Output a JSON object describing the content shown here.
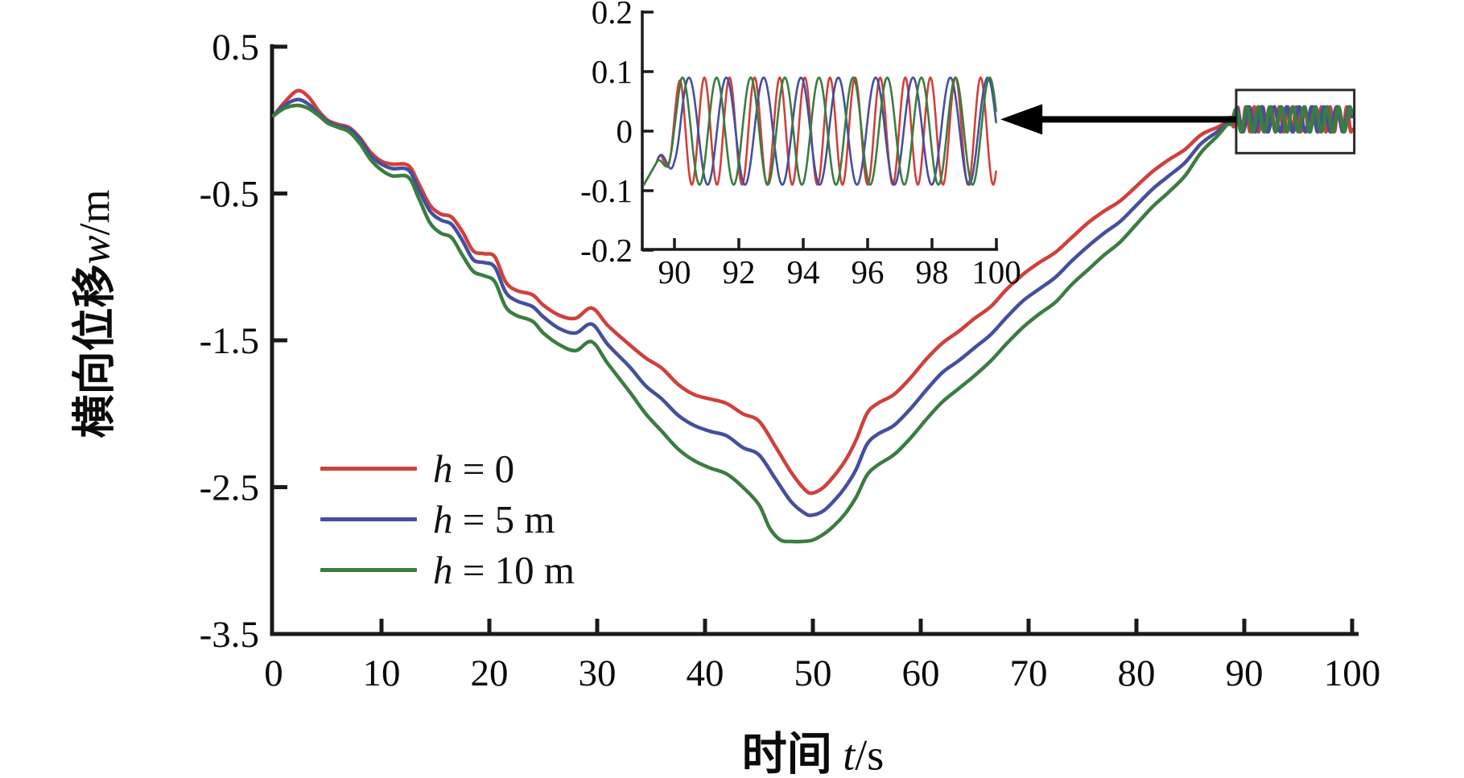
{
  "figure": {
    "background": "#ffffff",
    "axis_color": "#1a1a1a"
  },
  "chart_data": {
    "type": "line",
    "title": "",
    "xlabel": {
      "cn": "时间",
      "var": "t",
      "unit": "/s"
    },
    "ylabel": {
      "cn": "横向位移",
      "var": "w",
      "unit": "/m"
    },
    "xlim": [
      0,
      100
    ],
    "ylim": [
      -3.5,
      0.5
    ],
    "xticks": [
      "10",
      "20",
      "30",
      "40",
      "50",
      "60",
      "70",
      "80",
      "90",
      "100"
    ],
    "xtick_values": [
      10,
      20,
      30,
      40,
      50,
      60,
      70,
      80,
      90,
      100
    ],
    "yticks": [
      "0.5",
      "-0.5",
      "-1.5",
      "-2.5",
      "-3.5"
    ],
    "ytick_values": [
      0.5,
      -0.5,
      -1.5,
      -2.5,
      -3.5
    ],
    "grid": false,
    "legend": {
      "position": "lower-left-inside",
      "entries": [
        {
          "var": "h",
          "rest": " = 0",
          "color": "#d0403c"
        },
        {
          "var": "h",
          "rest": " = 5 m",
          "color": "#454f9e"
        },
        {
          "var": "h",
          "rest": " = 10 m",
          "color": "#3a7d40"
        }
      ]
    },
    "series": [
      {
        "name": "h = 0",
        "color": "#d0403c",
        "trend": [
          [
            0,
            0.03
          ],
          [
            1,
            0.12
          ],
          [
            2.2,
            0.2
          ],
          [
            3.2,
            0.16
          ],
          [
            4.2,
            0.06
          ],
          [
            5,
            0.0
          ],
          [
            6,
            -0.03
          ],
          [
            7,
            -0.05
          ],
          [
            8,
            -0.12
          ],
          [
            9,
            -0.22
          ],
          [
            10,
            -0.28
          ],
          [
            11,
            -0.3
          ],
          [
            12.5,
            -0.31
          ],
          [
            13.5,
            -0.44
          ],
          [
            14.5,
            -0.58
          ],
          [
            15.5,
            -0.64
          ],
          [
            16.5,
            -0.66
          ],
          [
            17.5,
            -0.76
          ],
          [
            18.5,
            -0.89
          ],
          [
            19.5,
            -0.91
          ],
          [
            20.5,
            -0.93
          ],
          [
            21.5,
            -1.1
          ],
          [
            22.5,
            -1.16
          ],
          [
            24,
            -1.19
          ],
          [
            25,
            -1.26
          ],
          [
            26.5,
            -1.33
          ],
          [
            28,
            -1.35
          ],
          [
            29.5,
            -1.28
          ],
          [
            31,
            -1.4
          ],
          [
            33,
            -1.53
          ],
          [
            34.5,
            -1.62
          ],
          [
            36,
            -1.69
          ],
          [
            37.5,
            -1.8
          ],
          [
            39,
            -1.87
          ],
          [
            40.5,
            -1.9
          ],
          [
            42,
            -1.93
          ],
          [
            43.5,
            -2.0
          ],
          [
            45,
            -2.05
          ],
          [
            46.5,
            -2.22
          ],
          [
            48,
            -2.4
          ],
          [
            49.3,
            -2.52
          ],
          [
            50,
            -2.54
          ],
          [
            51,
            -2.5
          ],
          [
            52,
            -2.42
          ],
          [
            53,
            -2.32
          ],
          [
            54,
            -2.18
          ],
          [
            55,
            -2.0
          ],
          [
            56,
            -1.93
          ],
          [
            57.5,
            -1.87
          ],
          [
            59,
            -1.76
          ],
          [
            60.5,
            -1.63
          ],
          [
            62,
            -1.52
          ],
          [
            63.5,
            -1.44
          ],
          [
            65,
            -1.35
          ],
          [
            66.5,
            -1.27
          ],
          [
            68,
            -1.15
          ],
          [
            69.5,
            -1.05
          ],
          [
            71,
            -0.97
          ],
          [
            72.5,
            -0.9
          ],
          [
            74,
            -0.8
          ],
          [
            75.5,
            -0.7
          ],
          [
            77,
            -0.62
          ],
          [
            78.5,
            -0.55
          ],
          [
            80,
            -0.45
          ],
          [
            81.5,
            -0.35
          ],
          [
            83,
            -0.27
          ],
          [
            84.5,
            -0.2
          ],
          [
            86,
            -0.1
          ],
          [
            87.5,
            -0.05
          ]
        ],
        "tail": {
          "start": 87.5,
          "settle": 0.005,
          "amp": 0.085,
          "period": 0.78,
          "phase": 0.36
        }
      },
      {
        "name": "h = 5 m",
        "color": "#454f9e",
        "trend": [
          [
            0,
            0.03
          ],
          [
            1,
            0.1
          ],
          [
            2.2,
            0.14
          ],
          [
            3.2,
            0.11
          ],
          [
            4.2,
            0.04
          ],
          [
            5,
            -0.01
          ],
          [
            6,
            -0.04
          ],
          [
            7,
            -0.06
          ],
          [
            8,
            -0.13
          ],
          [
            9,
            -0.24
          ],
          [
            10,
            -0.3
          ],
          [
            11,
            -0.33
          ],
          [
            12.5,
            -0.34
          ],
          [
            13.5,
            -0.48
          ],
          [
            14.5,
            -0.62
          ],
          [
            15.5,
            -0.68
          ],
          [
            16.5,
            -0.71
          ],
          [
            17.5,
            -0.82
          ],
          [
            18.5,
            -0.95
          ],
          [
            19.5,
            -0.97
          ],
          [
            20.5,
            -1.0
          ],
          [
            21.5,
            -1.17
          ],
          [
            22.5,
            -1.23
          ],
          [
            24,
            -1.27
          ],
          [
            25,
            -1.34
          ],
          [
            26.5,
            -1.42
          ],
          [
            28,
            -1.45
          ],
          [
            29.5,
            -1.39
          ],
          [
            31,
            -1.53
          ],
          [
            33,
            -1.68
          ],
          [
            34.5,
            -1.81
          ],
          [
            36,
            -1.9
          ],
          [
            37.5,
            -2.01
          ],
          [
            39,
            -2.08
          ],
          [
            40.5,
            -2.12
          ],
          [
            42,
            -2.15
          ],
          [
            43.5,
            -2.23
          ],
          [
            45,
            -2.28
          ],
          [
            46.5,
            -2.44
          ],
          [
            48,
            -2.6
          ],
          [
            49.3,
            -2.68
          ],
          [
            50,
            -2.69
          ],
          [
            51,
            -2.66
          ],
          [
            52,
            -2.59
          ],
          [
            53,
            -2.5
          ],
          [
            54,
            -2.38
          ],
          [
            55,
            -2.21
          ],
          [
            56,
            -2.14
          ],
          [
            57.5,
            -2.08
          ],
          [
            59,
            -1.97
          ],
          [
            60.5,
            -1.84
          ],
          [
            62,
            -1.72
          ],
          [
            63.5,
            -1.64
          ],
          [
            65,
            -1.55
          ],
          [
            66.5,
            -1.46
          ],
          [
            68,
            -1.34
          ],
          [
            69.5,
            -1.23
          ],
          [
            71,
            -1.15
          ],
          [
            72.5,
            -1.07
          ],
          [
            74,
            -0.96
          ],
          [
            75.5,
            -0.86
          ],
          [
            77,
            -0.77
          ],
          [
            78.5,
            -0.69
          ],
          [
            80,
            -0.58
          ],
          [
            81.5,
            -0.47
          ],
          [
            83,
            -0.38
          ],
          [
            84.5,
            -0.29
          ],
          [
            86,
            -0.16
          ],
          [
            87.5,
            -0.08
          ]
        ],
        "tail": {
          "start": 87.5,
          "settle": 0.005,
          "amp": 0.085,
          "period": 1.16,
          "phase": -0.87
        }
      },
      {
        "name": "h = 10 m",
        "color": "#3a7d40",
        "trend": [
          [
            0,
            0.03
          ],
          [
            1,
            0.08
          ],
          [
            2.2,
            0.1
          ],
          [
            3.2,
            0.08
          ],
          [
            4.2,
            0.03
          ],
          [
            5,
            -0.02
          ],
          [
            6,
            -0.05
          ],
          [
            7,
            -0.08
          ],
          [
            8,
            -0.16
          ],
          [
            9,
            -0.27
          ],
          [
            10,
            -0.34
          ],
          [
            11,
            -0.38
          ],
          [
            12.5,
            -0.39
          ],
          [
            13.5,
            -0.54
          ],
          [
            14.5,
            -0.7
          ],
          [
            15.5,
            -0.77
          ],
          [
            16.5,
            -0.8
          ],
          [
            17.5,
            -0.92
          ],
          [
            18.5,
            -1.03
          ],
          [
            19.5,
            -1.06
          ],
          [
            20.5,
            -1.1
          ],
          [
            21.5,
            -1.27
          ],
          [
            22.5,
            -1.33
          ],
          [
            24,
            -1.37
          ],
          [
            25,
            -1.45
          ],
          [
            26.5,
            -1.53
          ],
          [
            28,
            -1.57
          ],
          [
            29.5,
            -1.51
          ],
          [
            31,
            -1.66
          ],
          [
            33,
            -1.85
          ],
          [
            34.5,
            -2.0
          ],
          [
            36,
            -2.12
          ],
          [
            37.5,
            -2.24
          ],
          [
            39,
            -2.32
          ],
          [
            40.5,
            -2.37
          ],
          [
            42,
            -2.41
          ],
          [
            43.5,
            -2.5
          ],
          [
            45,
            -2.62
          ],
          [
            46,
            -2.78
          ],
          [
            47,
            -2.86
          ],
          [
            48,
            -2.87
          ],
          [
            49,
            -2.87
          ],
          [
            50,
            -2.86
          ],
          [
            51,
            -2.82
          ],
          [
            52,
            -2.76
          ],
          [
            53,
            -2.68
          ],
          [
            54,
            -2.57
          ],
          [
            55,
            -2.42
          ],
          [
            56,
            -2.35
          ],
          [
            57.5,
            -2.28
          ],
          [
            59,
            -2.17
          ],
          [
            60.5,
            -2.04
          ],
          [
            62,
            -1.92
          ],
          [
            63.5,
            -1.83
          ],
          [
            65,
            -1.74
          ],
          [
            66.5,
            -1.64
          ],
          [
            68,
            -1.52
          ],
          [
            69.5,
            -1.41
          ],
          [
            71,
            -1.32
          ],
          [
            72.5,
            -1.24
          ],
          [
            74,
            -1.12
          ],
          [
            75.5,
            -1.02
          ],
          [
            77,
            -0.92
          ],
          [
            78.5,
            -0.83
          ],
          [
            80,
            -0.71
          ],
          [
            81.5,
            -0.59
          ],
          [
            83,
            -0.49
          ],
          [
            84.5,
            -0.38
          ],
          [
            86,
            -0.22
          ],
          [
            87.5,
            -0.11
          ]
        ],
        "tail": {
          "start": 87.5,
          "settle": 0.005,
          "amp": 0.085,
          "period": 1.06,
          "phase": 0.09
        }
      }
    ],
    "inset": {
      "xlim": [
        89.0,
        100
      ],
      "ylim": [
        -0.2,
        0.2
      ],
      "xticks": [
        "90",
        "92",
        "94",
        "96",
        "98",
        "100"
      ],
      "xtick_values": [
        90,
        92,
        94,
        96,
        98,
        100
      ],
      "yticks": [
        "0.2",
        "0.1",
        "0",
        "-0.1",
        "-0.2"
      ],
      "ytick_values": [
        0.2,
        0.1,
        0,
        -0.1,
        -0.2
      ],
      "series": [
        {
          "name": "h = 0",
          "color": "#d0403c",
          "start_value": -0.09,
          "amp": 0.09,
          "period": 0.78,
          "phase": 0.36
        },
        {
          "name": "h = 5 m",
          "color": "#454f9e",
          "start_value": -0.09,
          "amp": 0.09,
          "period": 1.16,
          "phase": -0.87
        },
        {
          "name": "h = 10 m",
          "color": "#3a7d40",
          "start_value": -0.09,
          "amp": 0.09,
          "period": 1.06,
          "phase": 0.09
        }
      ]
    },
    "annotations": {
      "zoom_box": {
        "t0": 89.25,
        "t1": 100.2,
        "w0": -0.225,
        "w1": 0.205
      },
      "arrow": {
        "y_w": 0.005,
        "tail_t": 89.25,
        "tip_t": 67.4
      }
    }
  }
}
